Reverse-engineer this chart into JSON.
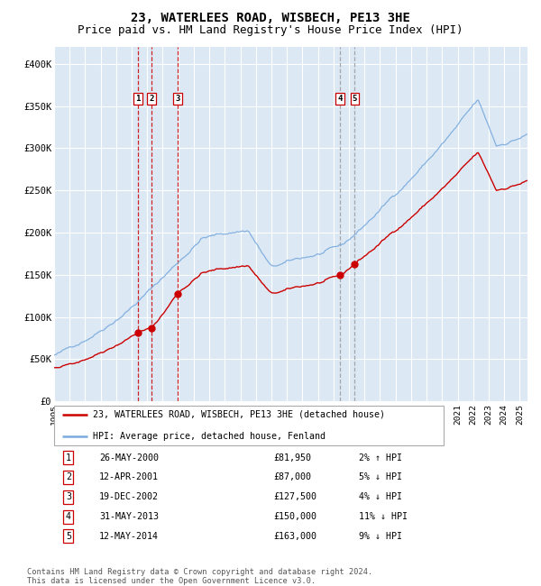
{
  "title": "23, WATERLEES ROAD, WISBECH, PE13 3HE",
  "subtitle": "Price paid vs. HM Land Registry's House Price Index (HPI)",
  "legend_line1": "23, WATERLEES ROAD, WISBECH, PE13 3HE (detached house)",
  "legend_line2": "HPI: Average price, detached house, Fenland",
  "footer": "Contains HM Land Registry data © Crown copyright and database right 2024.\nThis data is licensed under the Open Government Licence v3.0.",
  "sales": [
    {
      "num": 1,
      "date": "26-MAY-2000",
      "year": 2000.4,
      "price": 81950,
      "hpi_rel": "2% ↑ HPI"
    },
    {
      "num": 2,
      "date": "12-APR-2001",
      "year": 2001.28,
      "price": 87000,
      "hpi_rel": "5% ↓ HPI"
    },
    {
      "num": 3,
      "date": "19-DEC-2002",
      "year": 2002.96,
      "price": 127500,
      "hpi_rel": "4% ↓ HPI"
    },
    {
      "num": 4,
      "date": "31-MAY-2013",
      "year": 2013.41,
      "price": 150000,
      "hpi_rel": "11% ↓ HPI"
    },
    {
      "num": 5,
      "date": "12-MAY-2014",
      "year": 2014.36,
      "price": 163000,
      "hpi_rel": "9% ↓ HPI"
    }
  ],
  "xmin": 1995.0,
  "xmax": 2025.5,
  "ymin": 0,
  "ymax": 420000,
  "yticks": [
    0,
    50000,
    100000,
    150000,
    200000,
    250000,
    300000,
    350000,
    400000
  ],
  "ytick_labels": [
    "£0",
    "£50K",
    "£100K",
    "£150K",
    "£200K",
    "£250K",
    "£300K",
    "£350K",
    "£400K"
  ],
  "xticks": [
    1995,
    1996,
    1997,
    1998,
    1999,
    2000,
    2001,
    2002,
    2003,
    2004,
    2005,
    2006,
    2007,
    2008,
    2009,
    2010,
    2011,
    2012,
    2013,
    2014,
    2015,
    2016,
    2017,
    2018,
    2019,
    2020,
    2021,
    2022,
    2023,
    2024,
    2025
  ],
  "bg_color": "#dce9f5",
  "grid_color": "#ffffff",
  "red_line_color": "#cc0000",
  "blue_line_color": "#7aaadd",
  "marker_color": "#cc0000",
  "vline_red_color": "#cc0000",
  "vline_gray_color": "#999999",
  "title_fontsize": 10,
  "subtitle_fontsize": 9
}
